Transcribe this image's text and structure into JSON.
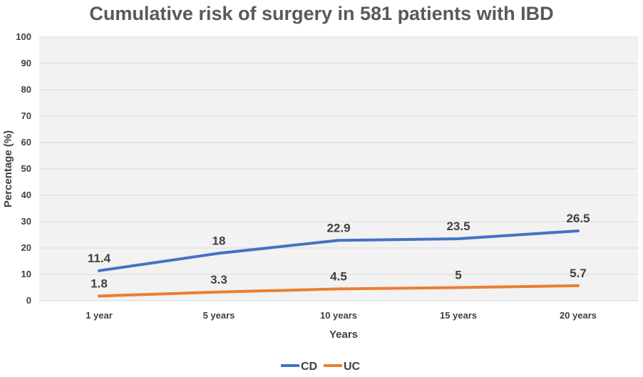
{
  "chart_data": {
    "type": "line",
    "title": "Cumulative risk of surgery in 581 patients with  IBD",
    "xlabel": "Years",
    "ylabel": "Percentage (%)",
    "categories": [
      "1 year",
      "5 years",
      "10 years",
      "15 years",
      "20 years"
    ],
    "ylim": [
      0,
      100
    ],
    "yticks": [
      0,
      10,
      20,
      30,
      40,
      50,
      60,
      70,
      80,
      90,
      100
    ],
    "grid": true,
    "legend": "bottom",
    "series": [
      {
        "name": "CD",
        "values": [
          11.4,
          18,
          22.9,
          23.5,
          26.5
        ],
        "color": "#4472C4"
      },
      {
        "name": "UC",
        "values": [
          1.8,
          3.3,
          4.5,
          5,
          5.7
        ],
        "color": "#ED7D31"
      }
    ],
    "plot_background": "#F2F2F2"
  }
}
